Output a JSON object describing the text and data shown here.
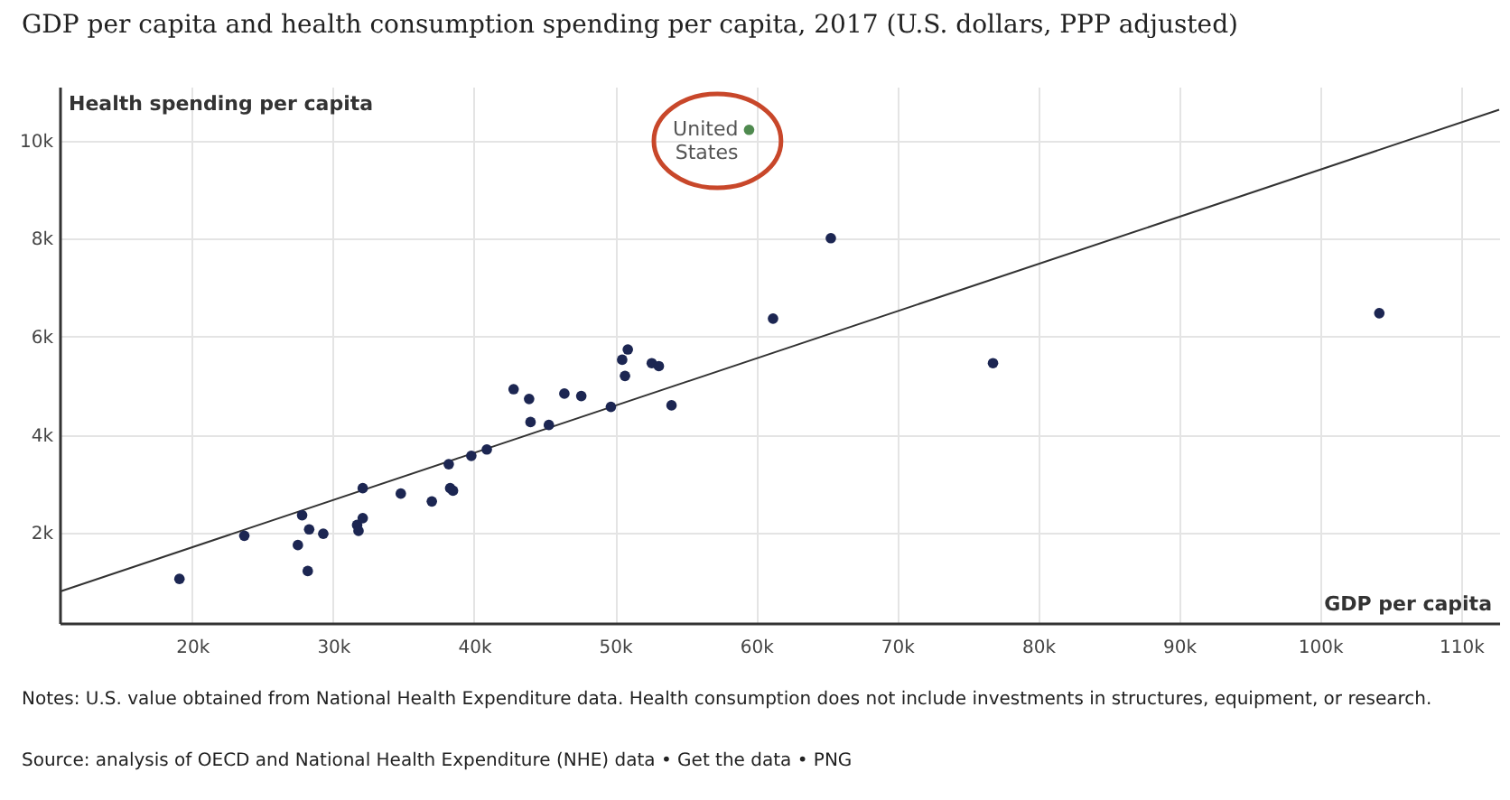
{
  "chart_data": {
    "type": "scatter",
    "title": "GDP per capita and health consumption spending per capita, 2017 (U.S. dollars, PPP adjusted)",
    "xlabel": "GDP per capita",
    "ylabel": "Health spending per capita",
    "xlim": [
      10600,
      112700
    ],
    "ylim": [
      160,
      11100
    ],
    "xticks": [
      {
        "value": 20000,
        "label": "20k"
      },
      {
        "value": 30000,
        "label": "30k"
      },
      {
        "value": 40000,
        "label": "40k"
      },
      {
        "value": 50000,
        "label": "50k"
      },
      {
        "value": 60000,
        "label": "60k"
      },
      {
        "value": 70000,
        "label": "70k"
      },
      {
        "value": 80000,
        "label": "80k"
      },
      {
        "value": 90000,
        "label": "90k"
      },
      {
        "value": 100000,
        "label": "100k"
      },
      {
        "value": 110000,
        "label": "110k"
      }
    ],
    "yticks": [
      {
        "value": 2000,
        "label": "2k"
      },
      {
        "value": 4000,
        "label": "4k"
      },
      {
        "value": 6000,
        "label": "6k"
      },
      {
        "value": 8000,
        "label": "8k"
      },
      {
        "value": 10000,
        "label": "10k"
      }
    ],
    "grid": true,
    "series": [
      {
        "type": "line",
        "color": "#333333",
        "x": [
          10700,
          112700
        ],
        "values": [
          810,
          10630
        ]
      },
      {
        "marker": "circle",
        "color": "#1c2652",
        "x": [
          19100,
          23700,
          27500,
          27800,
          28200,
          28300,
          29300,
          31700,
          31800,
          32100,
          32100,
          34800,
          37000,
          38200,
          38300,
          38500,
          39800,
          40900,
          42800,
          43900,
          44000,
          45300,
          46400,
          47600,
          49700,
          50500,
          50900,
          50700,
          52600,
          53100,
          54000,
          61200,
          65300,
          76800,
          104200
        ],
        "values": [
          1060,
          1940,
          1750,
          2360,
          1220,
          2070,
          1980,
          2160,
          2040,
          2300,
          2910,
          2800,
          2640,
          3400,
          2910,
          2860,
          3570,
          3700,
          4930,
          4730,
          4260,
          4200,
          4840,
          4790,
          4570,
          5530,
          5740,
          5200,
          5460,
          5400,
          4600,
          6370,
          8010,
          5460,
          6480
        ]
      },
      {
        "marker": "circle",
        "color": "#4f8a4f",
        "x": [
          59500
        ],
        "values": [
          10220
        ]
      }
    ],
    "annotations": [
      {
        "text": "United States",
        "x": 59500,
        "y": 10220
      },
      "Notes: U.S. value obtained from National Health Expenditure data. Health consumption does not include investments in structures, equipment, or research.",
      "Source: analysis of OECD and National Health Expenditure (NHE) data • Get the data • PNG"
    ]
  }
}
